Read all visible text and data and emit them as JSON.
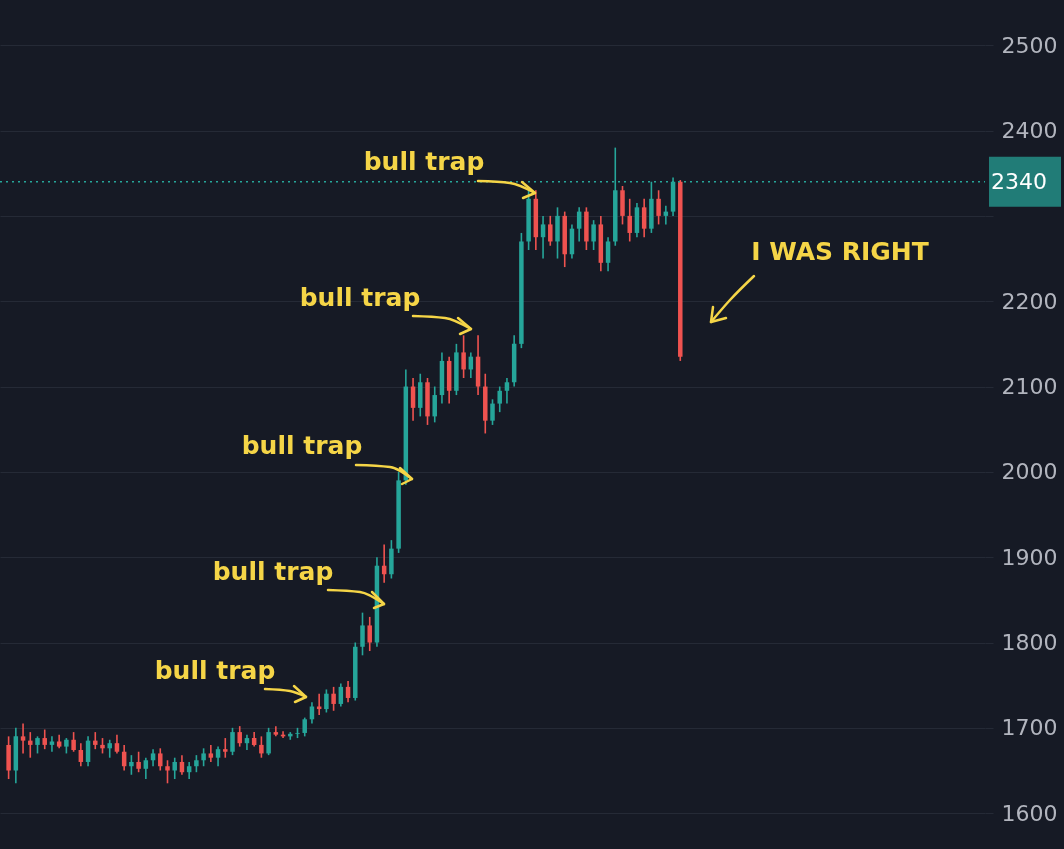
{
  "chart_data": {
    "type": "candlestick",
    "categories": [
      null,
      null,
      null,
      null,
      null,
      null,
      null,
      null,
      null,
      null,
      null,
      null,
      null,
      null,
      null,
      null,
      null,
      null,
      null,
      null,
      null,
      null,
      null,
      null,
      null,
      null,
      null,
      null,
      null,
      null,
      null,
      null,
      null,
      null,
      null,
      null,
      null,
      null,
      null,
      null,
      null,
      null,
      null,
      null,
      null,
      null,
      null,
      null,
      null,
      null,
      null,
      null,
      null,
      null,
      null,
      null,
      null,
      null,
      null,
      null,
      null,
      null,
      null,
      null,
      null,
      null,
      null,
      null,
      null,
      null,
      null,
      null,
      null,
      null,
      null,
      null,
      null,
      null,
      null,
      null,
      null,
      null,
      null,
      null,
      null,
      null,
      null,
      null,
      null,
      null,
      null,
      null,
      null,
      null,
      null,
      null,
      null,
      null,
      null,
      null,
      null,
      null,
      null,
      null,
      null,
      null,
      null,
      null,
      null,
      null,
      null,
      null,
      null,
      null,
      null,
      null,
      null,
      null,
      null,
      null,
      null,
      null,
      null,
      null,
      null,
      null,
      null,
      null,
      null,
      null,
      null,
      null,
      null,
      null,
      null
    ],
    "ohlc": [
      [
        1680,
        1690,
        1640,
        1650
      ],
      [
        1650,
        1700,
        1635,
        1690
      ],
      [
        1690,
        1705,
        1670,
        1685
      ],
      [
        1685,
        1695,
        1665,
        1680
      ],
      [
        1680,
        1690,
        1670,
        1688
      ],
      [
        1688,
        1698,
        1675,
        1680
      ],
      [
        1680,
        1690,
        1672,
        1684
      ],
      [
        1684,
        1692,
        1676,
        1678
      ],
      [
        1678,
        1688,
        1670,
        1686
      ],
      [
        1686,
        1695,
        1672,
        1674
      ],
      [
        1674,
        1682,
        1655,
        1660
      ],
      [
        1660,
        1690,
        1655,
        1685
      ],
      [
        1685,
        1695,
        1675,
        1680
      ],
      [
        1680,
        1688,
        1670,
        1676
      ],
      [
        1676,
        1686,
        1665,
        1682
      ],
      [
        1682,
        1692,
        1670,
        1672
      ],
      [
        1672,
        1680,
        1650,
        1655
      ],
      [
        1655,
        1668,
        1645,
        1660
      ],
      [
        1660,
        1672,
        1648,
        1652
      ],
      [
        1652,
        1665,
        1640,
        1662
      ],
      [
        1662,
        1675,
        1655,
        1670
      ],
      [
        1670,
        1676,
        1650,
        1655
      ],
      [
        1655,
        1662,
        1635,
        1650
      ],
      [
        1650,
        1665,
        1640,
        1660
      ],
      [
        1660,
        1668,
        1645,
        1648
      ],
      [
        1648,
        1660,
        1640,
        1655
      ],
      [
        1655,
        1668,
        1648,
        1662
      ],
      [
        1662,
        1676,
        1655,
        1670
      ],
      [
        1670,
        1680,
        1660,
        1665
      ],
      [
        1665,
        1678,
        1655,
        1675
      ],
      [
        1675,
        1688,
        1665,
        1672
      ],
      [
        1672,
        1700,
        1668,
        1695
      ],
      [
        1695,
        1702,
        1678,
        1682
      ],
      [
        1682,
        1692,
        1674,
        1688
      ],
      [
        1688,
        1695,
        1678,
        1680
      ],
      [
        1680,
        1690,
        1665,
        1670
      ],
      [
        1670,
        1700,
        1668,
        1695
      ],
      [
        1695,
        1702,
        1690,
        1692
      ],
      [
        1692,
        1696,
        1688,
        1690
      ],
      [
        1690,
        1695,
        1686,
        1693
      ],
      [
        1693,
        1700,
        1688,
        1694
      ],
      [
        1694,
        1712,
        1690,
        1710
      ],
      [
        1710,
        1730,
        1705,
        1725
      ],
      [
        1725,
        1740,
        1715,
        1722
      ],
      [
        1722,
        1745,
        1718,
        1740
      ],
      [
        1740,
        1748,
        1720,
        1728
      ],
      [
        1728,
        1752,
        1725,
        1748
      ],
      [
        1748,
        1755,
        1730,
        1735
      ],
      [
        1735,
        1800,
        1732,
        1795
      ],
      [
        1795,
        1835,
        1785,
        1820
      ],
      [
        1820,
        1830,
        1790,
        1800
      ],
      [
        1800,
        1900,
        1795,
        1890
      ],
      [
        1890,
        1915,
        1870,
        1880
      ],
      [
        1880,
        1920,
        1875,
        1910
      ],
      [
        1910,
        2000,
        1905,
        1990
      ],
      [
        1990,
        2120,
        1985,
        2100
      ],
      [
        2100,
        2110,
        2060,
        2075
      ],
      [
        2075,
        2115,
        2065,
        2105
      ],
      [
        2105,
        2110,
        2055,
        2065
      ],
      [
        2065,
        2100,
        2058,
        2090
      ],
      [
        2090,
        2140,
        2080,
        2130
      ],
      [
        2130,
        2135,
        2080,
        2095
      ],
      [
        2095,
        2150,
        2090,
        2140
      ],
      [
        2140,
        2160,
        2110,
        2120
      ],
      [
        2120,
        2140,
        2110,
        2135
      ],
      [
        2135,
        2160,
        2090,
        2100
      ],
      [
        2100,
        2115,
        2045,
        2060
      ],
      [
        2060,
        2085,
        2055,
        2080
      ],
      [
        2080,
        2100,
        2070,
        2095
      ],
      [
        2095,
        2110,
        2080,
        2105
      ],
      [
        2105,
        2160,
        2100,
        2150
      ],
      [
        2150,
        2280,
        2145,
        2270
      ],
      [
        2270,
        2330,
        2260,
        2320
      ],
      [
        2320,
        2330,
        2260,
        2275
      ],
      [
        2275,
        2300,
        2250,
        2290
      ],
      [
        2290,
        2300,
        2265,
        2270
      ],
      [
        2270,
        2310,
        2250,
        2300
      ],
      [
        2300,
        2305,
        2240,
        2255
      ],
      [
        2255,
        2290,
        2250,
        2285
      ],
      [
        2285,
        2310,
        2270,
        2305
      ],
      [
        2305,
        2310,
        2260,
        2270
      ],
      [
        2270,
        2295,
        2260,
        2290
      ],
      [
        2290,
        2300,
        2235,
        2245
      ],
      [
        2245,
        2275,
        2235,
        2270
      ],
      [
        2270,
        2380,
        2265,
        2330
      ],
      [
        2330,
        2335,
        2290,
        2300
      ],
      [
        2300,
        2320,
        2270,
        2280
      ],
      [
        2280,
        2315,
        2275,
        2310
      ],
      [
        2310,
        2320,
        2275,
        2285
      ],
      [
        2285,
        2340,
        2280,
        2320
      ],
      [
        2320,
        2330,
        2290,
        2300
      ],
      [
        2300,
        2312,
        2290,
        2305
      ],
      [
        2305,
        2345,
        2300,
        2340
      ],
      [
        2340,
        2342,
        2130,
        2135
      ],
      null,
      null,
      null,
      null,
      null,
      null,
      null,
      null,
      null,
      null,
      null,
      null,
      null,
      null,
      null,
      null,
      null,
      null,
      null,
      null,
      null,
      null,
      null,
      null,
      null,
      null,
      null,
      null,
      null,
      null,
      null,
      null,
      null,
      null,
      null,
      null,
      null,
      null,
      null,
      null,
      null
    ],
    "colors": [
      "#ef5350",
      "#26a69a",
      "#ef5350",
      "#ef5350",
      "#26a69a",
      "#ef5350",
      "#26a69a",
      "#ef5350",
      "#26a69a",
      "#ef5350",
      "#ef5350",
      "#26a69a",
      "#ef5350",
      "#ef5350",
      "#26a69a",
      "#ef5350",
      "#ef5350",
      "#26a69a",
      "#ef5350",
      "#26a69a",
      "#26a69a",
      "#ef5350",
      "#ef5350",
      "#26a69a",
      "#ef5350",
      "#26a69a",
      "#26a69a",
      "#26a69a",
      "#ef5350",
      "#26a69a",
      "#ef5350",
      "#26a69a",
      "#ef5350",
      "#26a69a",
      "#ef5350",
      "#ef5350",
      "#26a69a",
      "#ef5350",
      "#ef5350",
      "#26a69a",
      "#26a69a",
      "#26a69a",
      "#26a69a",
      "#ef5350",
      "#26a69a",
      "#ef5350",
      "#26a69a",
      "#ef5350",
      "#26a69a",
      "#26a69a",
      "#ef5350",
      "#26a69a",
      "#ef5350",
      "#26a69a",
      "#26a69a",
      "#26a69a",
      "#ef5350",
      "#26a69a",
      "#ef5350",
      "#26a69a",
      "#26a69a",
      "#ef5350",
      "#26a69a",
      "#ef5350",
      "#26a69a",
      "#ef5350",
      "#ef5350",
      "#26a69a",
      "#26a69a",
      "#26a69a",
      "#26a69a",
      "#26a69a",
      "#26a69a",
      "#ef5350",
      "#26a69a",
      "#ef5350",
      "#26a69a",
      "#ef5350",
      "#26a69a",
      "#26a69a",
      "#ef5350",
      "#26a69a",
      "#ef5350",
      "#26a69a",
      "#26a69a",
      "#ef5350",
      "#ef5350",
      "#26a69a",
      "#ef5350",
      "#26a69a",
      "#ef5350",
      "#26a69a",
      "#26a69a",
      "#ef5350",
      null,
      null,
      null,
      null,
      null,
      null,
      null,
      null,
      null,
      null,
      null,
      null,
      null,
      null,
      null,
      null,
      null,
      null,
      null,
      null,
      null,
      null,
      null,
      null,
      null,
      null,
      null,
      null,
      null,
      null,
      null,
      null,
      null,
      null,
      null,
      null,
      null,
      null,
      null,
      null,
      null
    ],
    "ylim": [
      1558,
      2553
    ],
    "yticks": [
      1600,
      1700,
      1800,
      1900,
      2000,
      2100,
      2200,
      {
        "value": 2300,
        "label": null
      },
      2400,
      2500
    ],
    "grid": "y",
    "tick_labels": "y",
    "ref_lines": [
      {
        "axis": "y",
        "value": 2340,
        "label": "2340",
        "color": "#26a69a",
        "line_style": "dotted"
      }
    ],
    "annotations": [
      "bull trap",
      "bull trap",
      "bull trap",
      "bull trap",
      "bull trap",
      "I WAS RIGHT"
    ]
  }
}
